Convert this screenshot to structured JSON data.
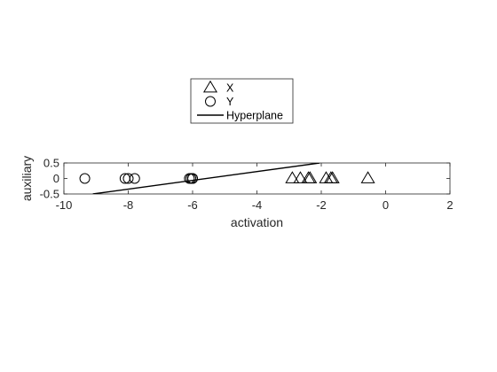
{
  "chart_data": {
    "type": "scatter",
    "xlabel": "activation",
    "ylabel": "auxiliary",
    "xlim": [
      -10,
      2
    ],
    "ylim": [
      -0.5,
      0.5
    ],
    "xticks": [
      "-10",
      "-8",
      "-6",
      "-4",
      "-2",
      "0",
      "2"
    ],
    "yticks": [
      "0.5",
      "0",
      "-0.5"
    ],
    "legend_position": "top-center",
    "series": [
      {
        "name": "X",
        "marker": "triangle",
        "color": "#000000",
        "points": [
          {
            "x": -2.9,
            "y": 0
          },
          {
            "x": -2.65,
            "y": 0
          },
          {
            "x": -2.4,
            "y": 0
          },
          {
            "x": -2.35,
            "y": 0
          },
          {
            "x": -1.85,
            "y": 0
          },
          {
            "x": -1.7,
            "y": 0
          },
          {
            "x": -1.65,
            "y": 0
          },
          {
            "x": -0.55,
            "y": 0
          }
        ]
      },
      {
        "name": "Y",
        "marker": "circle",
        "color": "#000000",
        "points": [
          {
            "x": -9.35,
            "y": 0
          },
          {
            "x": -8.1,
            "y": 0
          },
          {
            "x": -8.0,
            "y": 0
          },
          {
            "x": -7.8,
            "y": 0
          },
          {
            "x": -6.1,
            "y": 0
          },
          {
            "x": -6.05,
            "y": 0
          },
          {
            "x": -6.0,
            "y": 0
          },
          {
            "x": -6.0,
            "y": 0
          }
        ]
      },
      {
        "name": "Hyperplane",
        "marker": "line",
        "color": "#000000",
        "points": [
          {
            "x": -9.1,
            "y": -0.5
          },
          {
            "x": -2.05,
            "y": 0.5
          }
        ]
      }
    ]
  }
}
